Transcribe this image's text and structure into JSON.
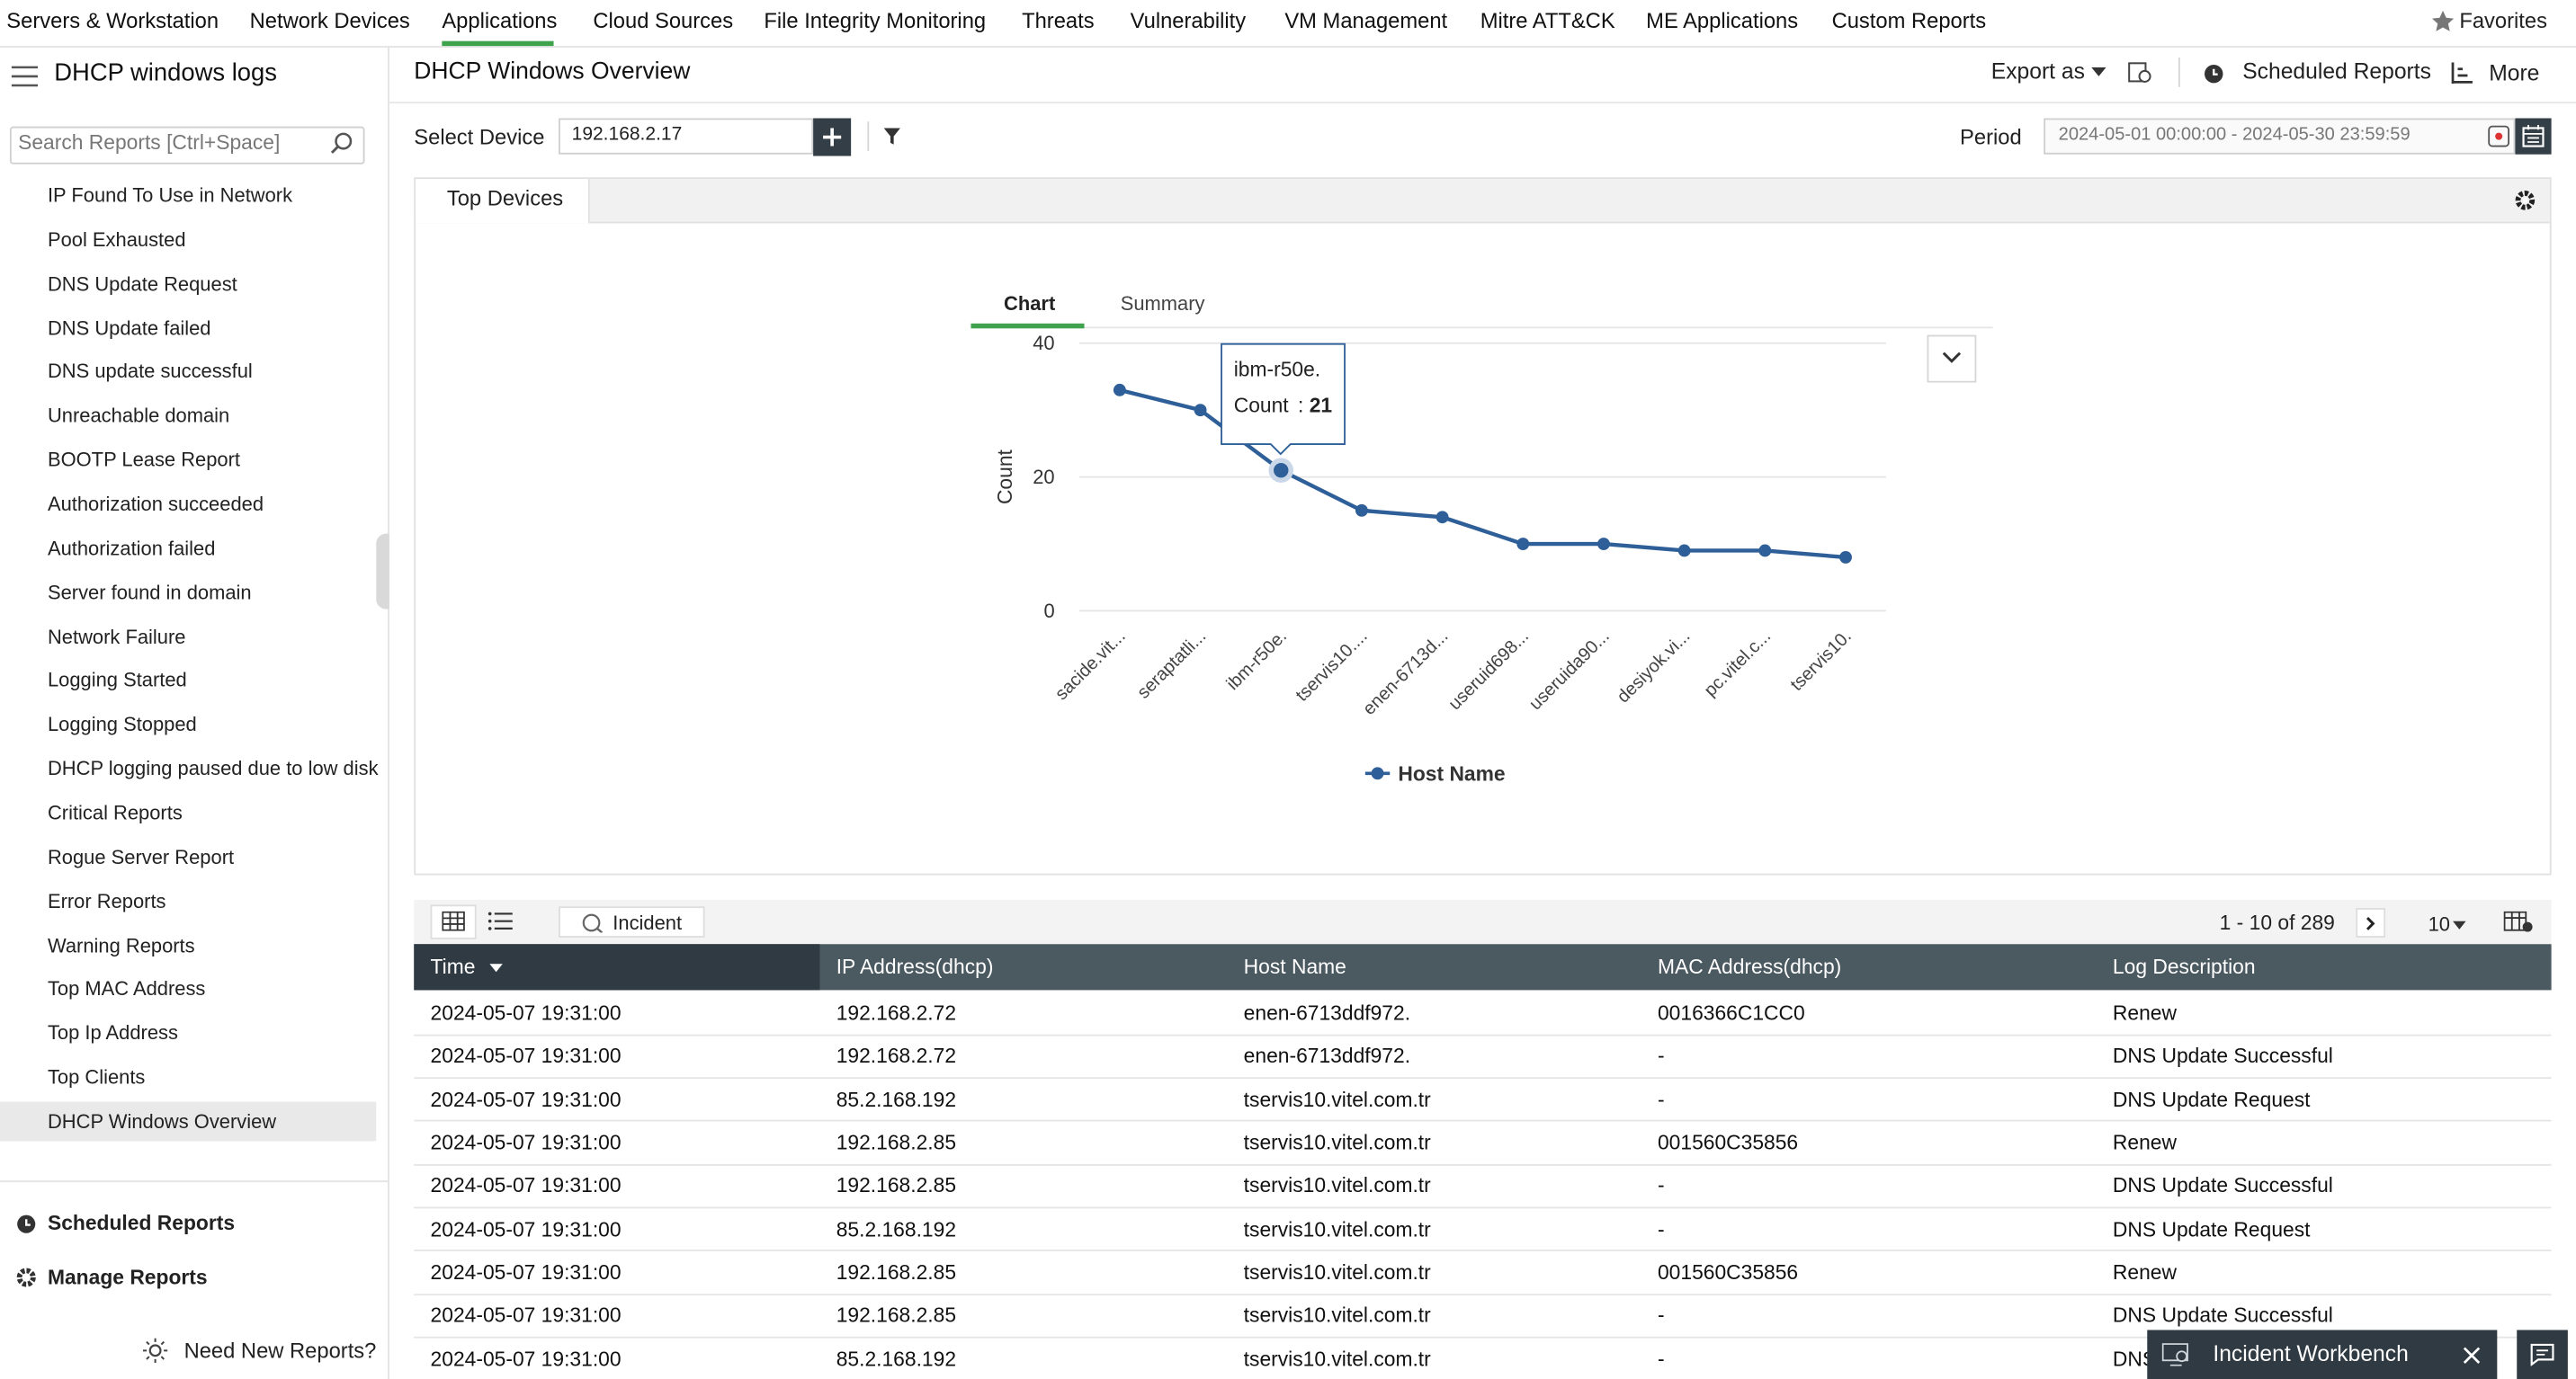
{
  "top_nav": {
    "items": [
      "Servers & Workstation",
      "Network Devices",
      "Applications",
      "Cloud Sources",
      "File Integrity Monitoring",
      "Threats",
      "Vulnerability",
      "VM Management",
      "Mitre ATT&CK",
      "ME Applications",
      "Custom Reports"
    ],
    "favorites": "Favorites"
  },
  "sidebar": {
    "title": "DHCP windows logs",
    "search_placeholder": "Search Reports [Ctrl+Space]",
    "reports": [
      "IP Found To Use in Network",
      "Pool Exhausted",
      "DNS Update Request",
      "DNS Update failed",
      "DNS update successful",
      "Unreachable domain",
      "BOOTP Lease Report",
      "Authorization succeeded",
      "Authorization failed",
      "Server found in domain",
      "Network Failure",
      "Logging Started",
      "Logging Stopped",
      "DHCP logging paused due to low disk",
      "Critical Reports",
      "Rogue Server Report",
      "Error Reports",
      "Warning Reports",
      "Top MAC Address",
      "Top Ip Address",
      "Top Clients",
      "DHCP Windows Overview"
    ],
    "scheduled_reports": "Scheduled Reports",
    "manage_reports": "Manage Reports",
    "need_new_reports": "Need New Reports?"
  },
  "header": {
    "title": "DHCP Windows Overview",
    "export": "Export as",
    "scheduled_reports": "Scheduled Reports",
    "more": "More"
  },
  "filters": {
    "device_label": "Select Device",
    "device": "192.168.2.17",
    "period_label": "Period",
    "period": "2024-05-01 00:00:00 - 2024-05-30 23:59:59"
  },
  "panel": {
    "tab": "Top Devices",
    "chart_tabs": [
      "Chart",
      "Summary"
    ]
  },
  "chart_data": {
    "type": "line",
    "y_label": "Count",
    "categories": [
      "sacide.vit...",
      "seraptatli...",
      "ibm-r50e.",
      "tservis10....",
      "enen-6713d...",
      "useruid698...",
      "useruida90...",
      "desiyok.vi...",
      "pc.vitel.c...",
      "tservis10."
    ],
    "series": [
      {
        "name": "Host Name",
        "color": "#2f5f98",
        "values": [
          33,
          30,
          21,
          15,
          14,
          10,
          10,
          9,
          9,
          8
        ]
      }
    ],
    "ylim": [
      0,
      40
    ],
    "yticks": [
      0,
      20,
      40
    ],
    "grid": true,
    "legend": "bottom"
  },
  "table": {
    "incident": "Incident",
    "pagination": "1 - 10 of 289",
    "page_size": "10",
    "columns": [
      "Time",
      "IP Address(dhcp)",
      "Host Name",
      "MAC Address(dhcp)",
      "Log Description"
    ],
    "rows": [
      [
        "2024-05-07 19:31:00",
        "192.168.2.72",
        "enen-6713ddf972.",
        "0016366C1CC0",
        "Renew"
      ],
      [
        "2024-05-07 19:31:00",
        "192.168.2.72",
        "enen-6713ddf972.",
        "-",
        "DNS Update Successful"
      ],
      [
        "2024-05-07 19:31:00",
        "85.2.168.192",
        "tservis10.vitel.com.tr",
        "-",
        "DNS Update Request"
      ],
      [
        "2024-05-07 19:31:00",
        "192.168.2.85",
        "tservis10.vitel.com.tr",
        "001560C35856",
        "Renew"
      ],
      [
        "2024-05-07 19:31:00",
        "192.168.2.85",
        "tservis10.vitel.com.tr",
        "-",
        "DNS Update Successful"
      ],
      [
        "2024-05-07 19:31:00",
        "85.2.168.192",
        "tservis10.vitel.com.tr",
        "-",
        "DNS Update Request"
      ],
      [
        "2024-05-07 19:31:00",
        "192.168.2.85",
        "tservis10.vitel.com.tr",
        "001560C35856",
        "Renew"
      ],
      [
        "2024-05-07 19:31:00",
        "192.168.2.85",
        "tservis10.vitel.com.tr",
        "-",
        "DNS Update Successful"
      ],
      [
        "2024-05-07 19:31:00",
        "85.2.168.192",
        "tservis10.vitel.com.tr",
        "-",
        "DNS Update Request"
      ]
    ]
  },
  "incident_workbench": "Incident Workbench"
}
